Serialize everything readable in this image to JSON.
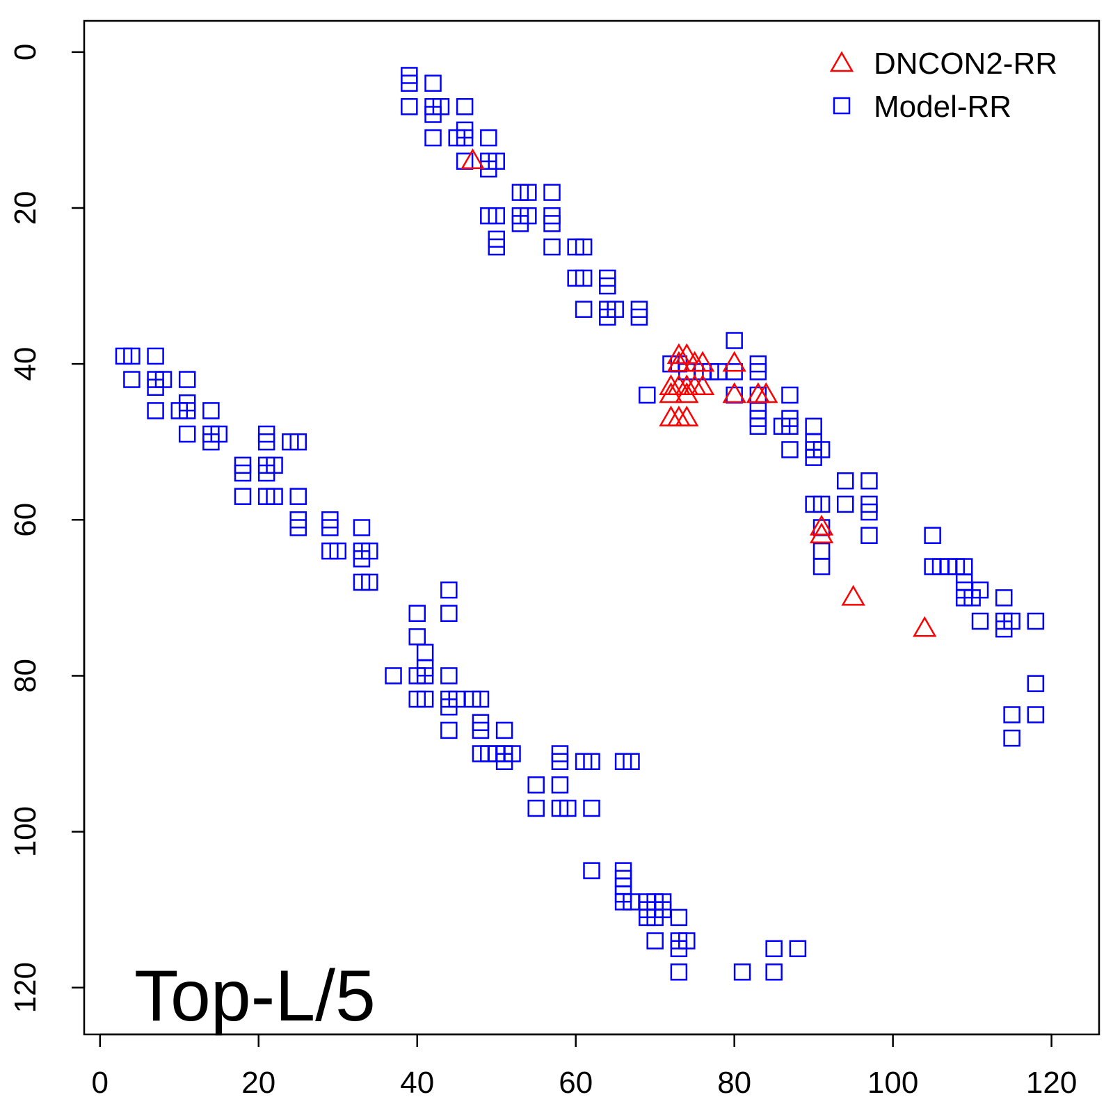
{
  "chart_data": {
    "type": "scatter",
    "title": "",
    "xlabel": "",
    "ylabel": "",
    "annotation": "Top-L/5",
    "xlim": [
      -2,
      126
    ],
    "ylim": [
      126,
      -4
    ],
    "y_inverted": true,
    "x_ticks": [
      0,
      20,
      40,
      60,
      80,
      100,
      120
    ],
    "y_ticks": [
      0,
      20,
      40,
      60,
      80,
      100,
      120
    ],
    "grid": false,
    "legend_position": "top-right",
    "series": [
      {
        "name": "DNCON2-RR",
        "marker": "triangle",
        "color": "#ff0000",
        "points": [
          [
            47,
            14
          ],
          [
            73,
            39
          ],
          [
            74,
            39
          ],
          [
            75,
            40
          ],
          [
            76,
            40
          ],
          [
            73,
            40
          ],
          [
            72,
            43
          ],
          [
            73,
            43
          ],
          [
            74,
            43
          ],
          [
            75,
            43
          ],
          [
            76,
            43
          ],
          [
            72,
            44
          ],
          [
            74,
            44
          ],
          [
            72,
            47
          ],
          [
            73,
            47
          ],
          [
            74,
            47
          ],
          [
            80,
            40
          ],
          [
            80,
            44
          ],
          [
            83,
            44
          ],
          [
            84,
            44
          ],
          [
            91,
            61
          ],
          [
            91,
            62
          ],
          [
            95,
            70
          ],
          [
            104,
            74
          ]
        ]
      },
      {
        "name": "Model-RR",
        "marker": "square",
        "color": "#0000ff",
        "points": [
          [
            39,
            3
          ],
          [
            39,
            4
          ],
          [
            39,
            7
          ],
          [
            42,
            4
          ],
          [
            42,
            7
          ],
          [
            42,
            8
          ],
          [
            43,
            7
          ],
          [
            46,
            7
          ],
          [
            42,
            11
          ],
          [
            45,
            11
          ],
          [
            46,
            10
          ],
          [
            46,
            11
          ],
          [
            49,
            11
          ],
          [
            46,
            14
          ],
          [
            49,
            14
          ],
          [
            50,
            14
          ],
          [
            49,
            15
          ],
          [
            53,
            18
          ],
          [
            54,
            18
          ],
          [
            57,
            18
          ],
          [
            49,
            21
          ],
          [
            50,
            21
          ],
          [
            53,
            21
          ],
          [
            54,
            21
          ],
          [
            57,
            21
          ],
          [
            53,
            22
          ],
          [
            57,
            22
          ],
          [
            50,
            24
          ],
          [
            50,
            25
          ],
          [
            57,
            25
          ],
          [
            60,
            25
          ],
          [
            61,
            25
          ],
          [
            60,
            29
          ],
          [
            61,
            29
          ],
          [
            64,
            29
          ],
          [
            64,
            30
          ],
          [
            61,
            33
          ],
          [
            64,
            33
          ],
          [
            65,
            33
          ],
          [
            68,
            33
          ],
          [
            64,
            34
          ],
          [
            68,
            34
          ],
          [
            3,
            39
          ],
          [
            4,
            39
          ],
          [
            7,
            39
          ],
          [
            4,
            42
          ],
          [
            7,
            42
          ],
          [
            8,
            42
          ],
          [
            11,
            42
          ],
          [
            7,
            43
          ],
          [
            10,
            46
          ],
          [
            11,
            45
          ],
          [
            11,
            46
          ],
          [
            14,
            46
          ],
          [
            7,
            46
          ],
          [
            11,
            49
          ],
          [
            14,
            49
          ],
          [
            15,
            49
          ],
          [
            14,
            50
          ],
          [
            21,
            49
          ],
          [
            21,
            50
          ],
          [
            24,
            50
          ],
          [
            25,
            50
          ],
          [
            18,
            53
          ],
          [
            21,
            53
          ],
          [
            22,
            53
          ],
          [
            18,
            54
          ],
          [
            21,
            54
          ],
          [
            18,
            57
          ],
          [
            21,
            57
          ],
          [
            22,
            57
          ],
          [
            25,
            57
          ],
          [
            25,
            60
          ],
          [
            25,
            61
          ],
          [
            29,
            60
          ],
          [
            29,
            61
          ],
          [
            33,
            61
          ],
          [
            29,
            64
          ],
          [
            30,
            64
          ],
          [
            33,
            64
          ],
          [
            34,
            64
          ],
          [
            33,
            65
          ],
          [
            33,
            68
          ],
          [
            34,
            68
          ],
          [
            80,
            37
          ],
          [
            72,
            40
          ],
          [
            73,
            40
          ],
          [
            74,
            41
          ],
          [
            76,
            41
          ],
          [
            77,
            41
          ],
          [
            78,
            41
          ],
          [
            80,
            41
          ],
          [
            83,
            40
          ],
          [
            83,
            41
          ],
          [
            69,
            44
          ],
          [
            80,
            44
          ],
          [
            83,
            44
          ],
          [
            87,
            44
          ],
          [
            83,
            46
          ],
          [
            83,
            47
          ],
          [
            87,
            47
          ],
          [
            83,
            48
          ],
          [
            86,
            48
          ],
          [
            87,
            48
          ],
          [
            90,
            48
          ],
          [
            90,
            50
          ],
          [
            90,
            51
          ],
          [
            91,
            51
          ],
          [
            87,
            51
          ],
          [
            90,
            52
          ],
          [
            94,
            55
          ],
          [
            97,
            55
          ],
          [
            90,
            58
          ],
          [
            91,
            58
          ],
          [
            94,
            58
          ],
          [
            97,
            58
          ],
          [
            97,
            59
          ],
          [
            91,
            61
          ],
          [
            97,
            62
          ],
          [
            91,
            64
          ],
          [
            91,
            66
          ],
          [
            105,
            62
          ],
          [
            105,
            66
          ],
          [
            106,
            66
          ],
          [
            107,
            66
          ],
          [
            108,
            66
          ],
          [
            109,
            66
          ],
          [
            109,
            68
          ],
          [
            109,
            69
          ],
          [
            111,
            69
          ],
          [
            109,
            70
          ],
          [
            110,
            70
          ],
          [
            114,
            70
          ],
          [
            111,
            73
          ],
          [
            114,
            73
          ],
          [
            115,
            73
          ],
          [
            118,
            73
          ],
          [
            114,
            74
          ],
          [
            118,
            81
          ],
          [
            115,
            85
          ],
          [
            118,
            85
          ],
          [
            115,
            88
          ],
          [
            44,
            69
          ],
          [
            40,
            72
          ],
          [
            44,
            72
          ],
          [
            40,
            75
          ],
          [
            41,
            77
          ],
          [
            41,
            79
          ],
          [
            37,
            80
          ],
          [
            40,
            80
          ],
          [
            41,
            80
          ],
          [
            44,
            80
          ],
          [
            40,
            83
          ],
          [
            41,
            83
          ],
          [
            44,
            83
          ],
          [
            45,
            83
          ],
          [
            47,
            83
          ],
          [
            48,
            83
          ],
          [
            44,
            84
          ],
          [
            48,
            86
          ],
          [
            48,
            87
          ],
          [
            44,
            87
          ],
          [
            51,
            87
          ],
          [
            48,
            90
          ],
          [
            49,
            90
          ],
          [
            50,
            90
          ],
          [
            51,
            90
          ],
          [
            52,
            90
          ],
          [
            51,
            91
          ],
          [
            58,
            90
          ],
          [
            58,
            91
          ],
          [
            61,
            91
          ],
          [
            62,
            91
          ],
          [
            66,
            91
          ],
          [
            67,
            91
          ],
          [
            55,
            94
          ],
          [
            58,
            94
          ],
          [
            55,
            97
          ],
          [
            58,
            97
          ],
          [
            59,
            97
          ],
          [
            62,
            97
          ],
          [
            62,
            105
          ],
          [
            66,
            105
          ],
          [
            66,
            106
          ],
          [
            66,
            107
          ],
          [
            66,
            108
          ],
          [
            66,
            109
          ],
          [
            67,
            109
          ],
          [
            69,
            109
          ],
          [
            70,
            109
          ],
          [
            71,
            109
          ],
          [
            69,
            110
          ],
          [
            70,
            110
          ],
          [
            71,
            110
          ],
          [
            69,
            111
          ],
          [
            70,
            111
          ],
          [
            73,
            111
          ],
          [
            70,
            114
          ],
          [
            73,
            114
          ],
          [
            74,
            114
          ],
          [
            73,
            115
          ],
          [
            85,
            115
          ],
          [
            88,
            115
          ],
          [
            73,
            118
          ],
          [
            81,
            118
          ],
          [
            85,
            118
          ]
        ]
      }
    ]
  }
}
